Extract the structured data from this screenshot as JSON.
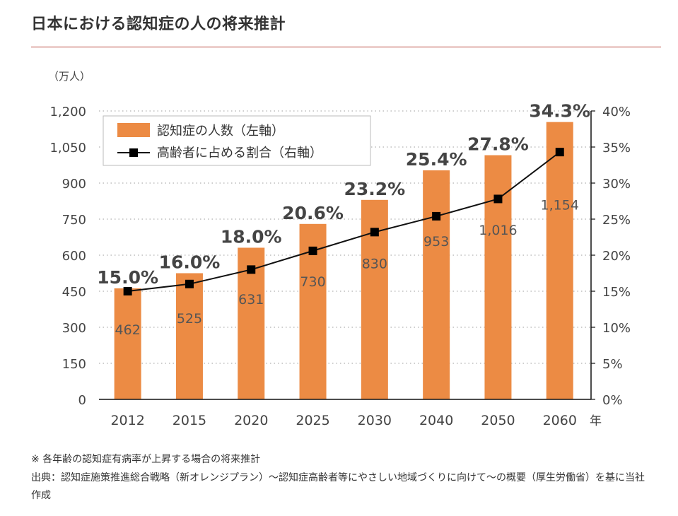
{
  "page": {
    "title": "日本における認知症の人の将来推計",
    "note": "※ 各年齢の認知症有病率が上昇する場合の将来推計",
    "source": "出典：認知症施策推進総合戦略（新オレンジプラン）〜認知症高齢者等にやさしい地域づくりに向けて〜の概要（厚生労働省）を基に当社作成"
  },
  "colors": {
    "bar": "#ec8b44",
    "line": "#111111",
    "marker": "#000000",
    "grid": "#bdbdbd",
    "rule": "#b8453c"
  },
  "chart_data": {
    "type": "bar",
    "categories": [
      "2012",
      "2015",
      "2020",
      "2025",
      "2030",
      "2040",
      "2050",
      "2060"
    ],
    "x_unit": "年",
    "series": [
      {
        "name": "認知症の人数（左軸）",
        "type": "bar",
        "axis": "left",
        "values": [
          462,
          525,
          631,
          730,
          830,
          953,
          1016,
          1154
        ],
        "labels": [
          "462",
          "525",
          "631",
          "730",
          "830",
          "953",
          "1,016",
          "1,154"
        ]
      },
      {
        "name": "高齢者に占める割合（右軸）",
        "type": "line",
        "axis": "right",
        "values": [
          15.0,
          16.0,
          18.0,
          20.6,
          23.2,
          25.4,
          27.8,
          34.3
        ],
        "labels": [
          "15.0%",
          "16.0%",
          "18.0%",
          "20.6%",
          "23.2%",
          "25.4%",
          "27.8%",
          "34.3%"
        ]
      }
    ],
    "y_left": {
      "unit": "（万人）",
      "min": 0,
      "max": 1200,
      "ticks": [
        0,
        150,
        300,
        450,
        600,
        750,
        900,
        1050,
        1200
      ],
      "tick_labels": [
        "0",
        "150",
        "300",
        "450",
        "600",
        "750",
        "900",
        "1,050",
        "1,200"
      ]
    },
    "y_right": {
      "min": 0,
      "max": 40,
      "ticks": [
        0,
        5,
        10,
        15,
        20,
        25,
        30,
        35,
        40
      ],
      "tick_labels": [
        "0%",
        "5%",
        "10%",
        "15%",
        "20%",
        "25%",
        "30%",
        "35%",
        "40%"
      ]
    },
    "grid": "horizontal dotted",
    "legend": "top-left"
  }
}
